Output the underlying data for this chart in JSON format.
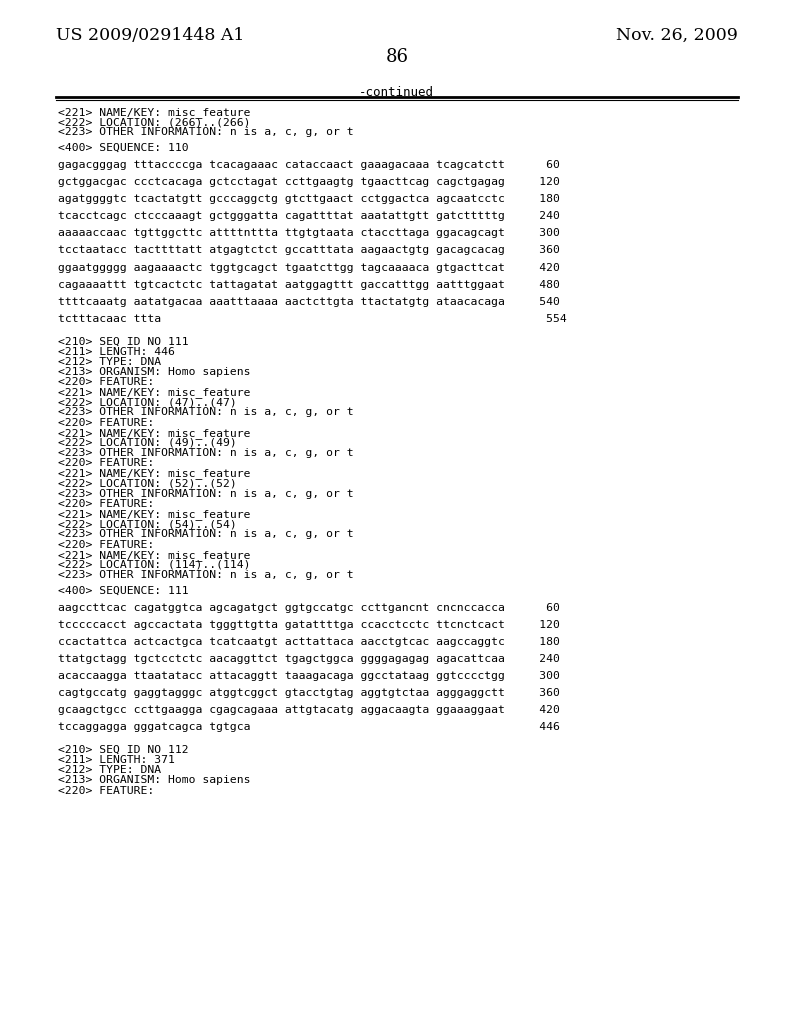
{
  "header_left": "US 2009/0291448 A1",
  "header_right": "Nov. 26, 2009",
  "page_number": "86",
  "continued_label": "-continued",
  "background_color": "#ffffff",
  "text_color": "#000000",
  "lines": [
    {
      "text": "<221> NAME/KEY: misc_feature",
      "type": "meta"
    },
    {
      "text": "<222> LOCATION: (266)..(266)",
      "type": "meta"
    },
    {
      "text": "<223> OTHER INFORMATION: n is a, c, g, or t",
      "type": "meta"
    },
    {
      "text": "",
      "type": "blank"
    },
    {
      "text": "<400> SEQUENCE: 110",
      "type": "meta"
    },
    {
      "text": "",
      "type": "blank"
    },
    {
      "text": "gagacgggag tttaccccga tcacagaaac cataccaact gaaagacaaa tcagcatctt      60",
      "type": "seq"
    },
    {
      "text": "",
      "type": "blank"
    },
    {
      "text": "gctggacgac ccctcacaga gctcctagat ccttgaagtg tgaacttcag cagctgagag     120",
      "type": "seq"
    },
    {
      "text": "",
      "type": "blank"
    },
    {
      "text": "agatggggtc tcactatgtt gcccaggctg gtcttgaact cctggactca agcaatcctc     180",
      "type": "seq"
    },
    {
      "text": "",
      "type": "blank"
    },
    {
      "text": "tcacctcagc ctcccaaagt gctgggatta cagattttat aaatattgtt gatctttttg     240",
      "type": "seq"
    },
    {
      "text": "",
      "type": "blank"
    },
    {
      "text": "aaaaaccaac tgttggcttc attttnttta ttgtgtaata ctaccttaga ggacagcagt     300",
      "type": "seq"
    },
    {
      "text": "",
      "type": "blank"
    },
    {
      "text": "tcctaatacc tacttttatt atgagtctct gccatttata aagaactgtg gacagcacag     360",
      "type": "seq"
    },
    {
      "text": "",
      "type": "blank"
    },
    {
      "text": "ggaatggggg aagaaaactc tggtgcagct tgaatcttgg tagcaaaaca gtgacttcat     420",
      "type": "seq"
    },
    {
      "text": "",
      "type": "blank"
    },
    {
      "text": "cagaaaattt tgtcactctc tattagatat aatggagttt gaccatttgg aatttggaat     480",
      "type": "seq"
    },
    {
      "text": "",
      "type": "blank"
    },
    {
      "text": "ttttcaaatg aatatgacaa aaatttaaaa aactcttgta ttactatgtg ataacacaga     540",
      "type": "seq"
    },
    {
      "text": "",
      "type": "blank"
    },
    {
      "text": "tctttacaac ttta                                                        554",
      "type": "seq"
    },
    {
      "text": "",
      "type": "blank"
    },
    {
      "text": "",
      "type": "blank"
    },
    {
      "text": "<210> SEQ ID NO 111",
      "type": "meta"
    },
    {
      "text": "<211> LENGTH: 446",
      "type": "meta"
    },
    {
      "text": "<212> TYPE: DNA",
      "type": "meta"
    },
    {
      "text": "<213> ORGANISM: Homo sapiens",
      "type": "meta"
    },
    {
      "text": "<220> FEATURE:",
      "type": "meta"
    },
    {
      "text": "<221> NAME/KEY: misc_feature",
      "type": "meta"
    },
    {
      "text": "<222> LOCATION: (47)..(47)",
      "type": "meta"
    },
    {
      "text": "<223> OTHER INFORMATION: n is a, c, g, or t",
      "type": "meta"
    },
    {
      "text": "<220> FEATURE:",
      "type": "meta"
    },
    {
      "text": "<221> NAME/KEY: misc_feature",
      "type": "meta"
    },
    {
      "text": "<222> LOCATION: (49)..(49)",
      "type": "meta"
    },
    {
      "text": "<223> OTHER INFORMATION: n is a, c, g, or t",
      "type": "meta"
    },
    {
      "text": "<220> FEATURE:",
      "type": "meta"
    },
    {
      "text": "<221> NAME/KEY: misc_feature",
      "type": "meta"
    },
    {
      "text": "<222> LOCATION: (52)..(52)",
      "type": "meta"
    },
    {
      "text": "<223> OTHER INFORMATION: n is a, c, g, or t",
      "type": "meta"
    },
    {
      "text": "<220> FEATURE:",
      "type": "meta"
    },
    {
      "text": "<221> NAME/KEY: misc_feature",
      "type": "meta"
    },
    {
      "text": "<222> LOCATION: (54)..(54)",
      "type": "meta"
    },
    {
      "text": "<223> OTHER INFORMATION: n is a, c, g, or t",
      "type": "meta"
    },
    {
      "text": "<220> FEATURE:",
      "type": "meta"
    },
    {
      "text": "<221> NAME/KEY: misc_feature",
      "type": "meta"
    },
    {
      "text": "<222> LOCATION: (114)..(114)",
      "type": "meta"
    },
    {
      "text": "<223> OTHER INFORMATION: n is a, c, g, or t",
      "type": "meta"
    },
    {
      "text": "",
      "type": "blank"
    },
    {
      "text": "<400> SEQUENCE: 111",
      "type": "meta"
    },
    {
      "text": "",
      "type": "blank"
    },
    {
      "text": "aagccttcac cagatggtca agcagatgct ggtgccatgc ccttgancnt cncnccacca      60",
      "type": "seq"
    },
    {
      "text": "",
      "type": "blank"
    },
    {
      "text": "tcccccacct agccactata tgggttgtta gatattttga ccacctcctc ttcnctcact     120",
      "type": "seq"
    },
    {
      "text": "",
      "type": "blank"
    },
    {
      "text": "ccactattca actcactgca tcatcaatgt acttattaca aacctgtcac aagccaggtc     180",
      "type": "seq"
    },
    {
      "text": "",
      "type": "blank"
    },
    {
      "text": "ttatgctagg tgctcctctc aacaggttct tgagctggca ggggagagag agacattcaa     240",
      "type": "seq"
    },
    {
      "text": "",
      "type": "blank"
    },
    {
      "text": "acaccaagga ttaatatacc attacaggtt taaagacaga ggcctataag ggtcccctgg     300",
      "type": "seq"
    },
    {
      "text": "",
      "type": "blank"
    },
    {
      "text": "cagtgccatg gaggtagggc atggtcggct gtacctgtag aggtgtctaa agggaggctt     360",
      "type": "seq"
    },
    {
      "text": "",
      "type": "blank"
    },
    {
      "text": "gcaagctgcc ccttgaagga cgagcagaaa attgtacatg aggacaagta ggaaaggaat     420",
      "type": "seq"
    },
    {
      "text": "",
      "type": "blank"
    },
    {
      "text": "tccaggagga gggatcagca tgtgca                                          446",
      "type": "seq"
    },
    {
      "text": "",
      "type": "blank"
    },
    {
      "text": "",
      "type": "blank"
    },
    {
      "text": "<210> SEQ ID NO 112",
      "type": "meta"
    },
    {
      "text": "<211> LENGTH: 371",
      "type": "meta"
    },
    {
      "text": "<212> TYPE: DNA",
      "type": "meta"
    },
    {
      "text": "<213> ORGANISM: Homo sapiens",
      "type": "meta"
    },
    {
      "text": "<220> FEATURE:",
      "type": "meta"
    }
  ]
}
